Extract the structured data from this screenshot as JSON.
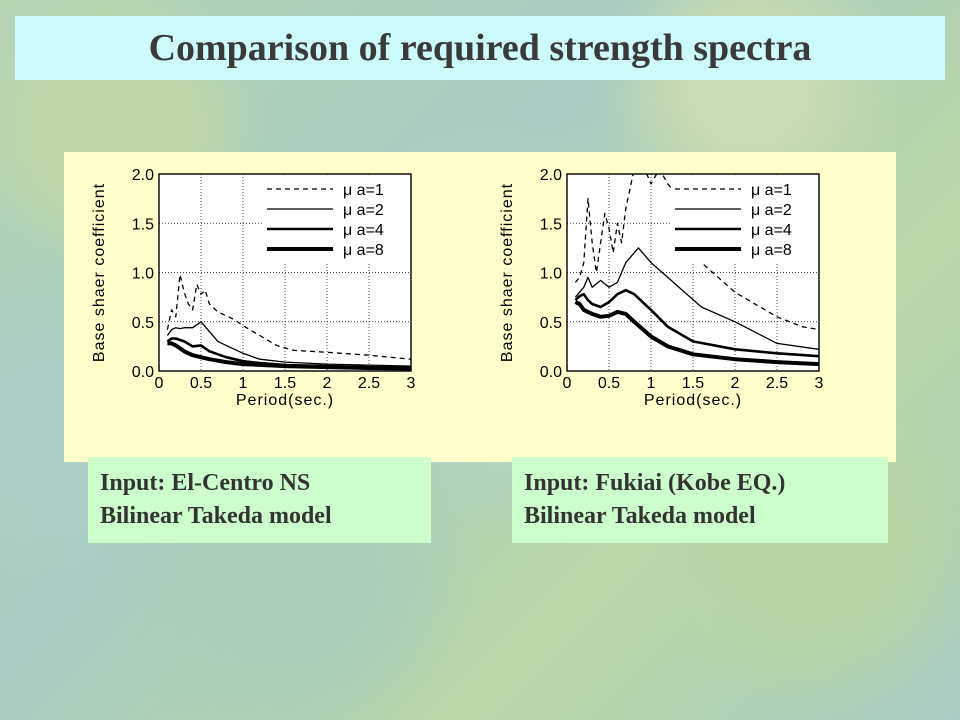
{
  "slide": {
    "title": "Comparison of required strength spectra"
  },
  "captions": [
    {
      "line1": "Input: El-Centro NS",
      "line2": "Bilinear Takeda model"
    },
    {
      "line1": "Input: Fukiai (Kobe EQ.)",
      "line2": "Bilinear Takeda model"
    }
  ],
  "chart_data": [
    {
      "type": "line",
      "xlabel": "Period(sec.)",
      "ylabel": "Base shaer coefficient",
      "xlim": [
        0,
        3
      ],
      "ylim": [
        0,
        2
      ],
      "xticks": [
        "0",
        "0.5",
        "1",
        "1.5",
        "2",
        "2.5",
        "3"
      ],
      "yticks": [
        "0.0",
        "0.5",
        "1.0",
        "1.5",
        "2.0"
      ],
      "grid": true,
      "legend_position": "top-right",
      "series": [
        {
          "name": "μ a=1",
          "style": "dashed",
          "width": 1.3,
          "x": [
            0.1,
            0.15,
            0.2,
            0.25,
            0.3,
            0.35,
            0.4,
            0.45,
            0.5,
            0.55,
            0.6,
            0.7,
            0.8,
            0.9,
            1.0,
            1.2,
            1.4,
            1.6,
            2.0,
            2.5,
            3.0
          ],
          "y": [
            0.42,
            0.62,
            0.55,
            0.98,
            0.8,
            0.68,
            0.62,
            0.88,
            0.78,
            0.82,
            0.68,
            0.6,
            0.56,
            0.52,
            0.46,
            0.36,
            0.26,
            0.21,
            0.19,
            0.16,
            0.12
          ]
        },
        {
          "name": "μ a=2",
          "style": "solid",
          "width": 1.3,
          "x": [
            0.1,
            0.15,
            0.2,
            0.25,
            0.3,
            0.4,
            0.5,
            0.55,
            0.6,
            0.7,
            0.8,
            1.0,
            1.2,
            1.5,
            2.0,
            2.5,
            3.0
          ],
          "y": [
            0.36,
            0.42,
            0.44,
            0.43,
            0.44,
            0.44,
            0.5,
            0.45,
            0.4,
            0.3,
            0.26,
            0.18,
            0.12,
            0.09,
            0.07,
            0.06,
            0.05
          ]
        },
        {
          "name": "μ a=4",
          "style": "solid",
          "width": 2.6,
          "x": [
            0.1,
            0.15,
            0.2,
            0.3,
            0.4,
            0.5,
            0.6,
            0.8,
            1.0,
            1.2,
            1.5,
            2.0,
            2.5,
            3.0
          ],
          "y": [
            0.3,
            0.33,
            0.33,
            0.3,
            0.25,
            0.26,
            0.2,
            0.14,
            0.1,
            0.08,
            0.06,
            0.05,
            0.04,
            0.035
          ]
        },
        {
          "name": "μ a=8",
          "style": "solid",
          "width": 4,
          "x": [
            0.1,
            0.15,
            0.2,
            0.3,
            0.4,
            0.5,
            0.6,
            0.8,
            1.0,
            1.5,
            2.0,
            2.5,
            3.0
          ],
          "y": [
            0.28,
            0.28,
            0.26,
            0.2,
            0.16,
            0.14,
            0.12,
            0.09,
            0.07,
            0.05,
            0.04,
            0.03,
            0.025
          ]
        }
      ]
    },
    {
      "type": "line",
      "xlabel": "Period(sec.)",
      "ylabel": "Base shaer coefficient",
      "xlim": [
        0,
        3
      ],
      "ylim": [
        0,
        2
      ],
      "xticks": [
        "0",
        "0.5",
        "1",
        "1.5",
        "2",
        "2.5",
        "3"
      ],
      "yticks": [
        "0.0",
        "0.5",
        "1.0",
        "1.5",
        "2.0"
      ],
      "grid": true,
      "legend_position": "top-right",
      "series": [
        {
          "name": "μ a=1",
          "style": "dashed",
          "width": 1.3,
          "x": [
            0.1,
            0.15,
            0.2,
            0.25,
            0.3,
            0.35,
            0.4,
            0.45,
            0.5,
            0.55,
            0.6,
            0.65,
            0.7,
            0.8,
            0.9,
            1.0,
            1.1,
            1.2,
            1.3,
            1.4,
            1.6,
            1.8,
            2.0,
            2.2,
            2.5,
            2.8,
            3.0
          ],
          "y": [
            0.9,
            0.95,
            1.1,
            1.75,
            1.3,
            1.0,
            1.3,
            1.6,
            1.45,
            1.2,
            1.5,
            1.3,
            1.65,
            2.05,
            2.1,
            1.9,
            2.05,
            1.9,
            1.8,
            1.5,
            1.1,
            0.95,
            0.8,
            0.7,
            0.55,
            0.45,
            0.42
          ]
        },
        {
          "name": "μ a=2",
          "style": "solid",
          "width": 1.3,
          "x": [
            0.1,
            0.15,
            0.2,
            0.25,
            0.3,
            0.4,
            0.5,
            0.6,
            0.7,
            0.8,
            0.85,
            0.9,
            1.0,
            1.2,
            1.4,
            1.6,
            2.0,
            2.5,
            3.0
          ],
          "y": [
            0.75,
            0.8,
            0.85,
            0.95,
            0.85,
            0.92,
            0.85,
            0.9,
            1.1,
            1.2,
            1.25,
            1.2,
            1.1,
            0.95,
            0.8,
            0.65,
            0.5,
            0.28,
            0.22
          ]
        },
        {
          "name": "μ a=4",
          "style": "solid",
          "width": 2.6,
          "x": [
            0.1,
            0.15,
            0.2,
            0.25,
            0.3,
            0.4,
            0.5,
            0.6,
            0.7,
            0.8,
            1.0,
            1.2,
            1.5,
            2.0,
            2.5,
            3.0
          ],
          "y": [
            0.72,
            0.76,
            0.78,
            0.72,
            0.68,
            0.65,
            0.7,
            0.78,
            0.82,
            0.78,
            0.62,
            0.45,
            0.3,
            0.22,
            0.18,
            0.15
          ]
        },
        {
          "name": "μ a=8",
          "style": "solid",
          "width": 4,
          "x": [
            0.1,
            0.15,
            0.2,
            0.3,
            0.4,
            0.5,
            0.6,
            0.7,
            0.8,
            1.0,
            1.2,
            1.5,
            2.0,
            2.5,
            3.0
          ],
          "y": [
            0.7,
            0.68,
            0.62,
            0.58,
            0.55,
            0.56,
            0.6,
            0.58,
            0.5,
            0.35,
            0.25,
            0.17,
            0.12,
            0.09,
            0.07
          ]
        }
      ]
    }
  ]
}
